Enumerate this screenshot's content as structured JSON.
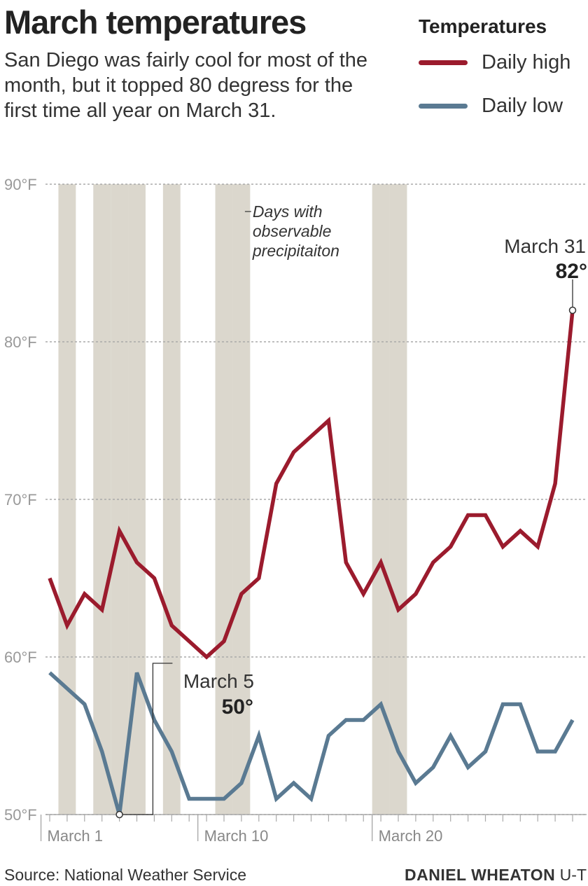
{
  "header": {
    "title": "March temperatures",
    "subtitle": "San Diego was fairly cool for most of the month, but it topped 80 degress for the first time all year on March 31."
  },
  "legend": {
    "title": "Temperatures",
    "items": [
      {
        "label": "Daily high",
        "color": "#9b1b2d"
      },
      {
        "label": "Daily low",
        "color": "#5a7a92"
      }
    ]
  },
  "footer": {
    "source": "Source: National Weather Service",
    "credit_name": "DANIEL WHEATON",
    "credit_org": "U-T"
  },
  "chart_data": {
    "type": "line",
    "x": [
      1,
      2,
      3,
      4,
      5,
      6,
      7,
      8,
      9,
      10,
      11,
      12,
      13,
      14,
      15,
      16,
      17,
      18,
      19,
      20,
      21,
      22,
      23,
      24,
      25,
      26,
      27,
      28,
      29,
      30,
      31
    ],
    "series": [
      {
        "name": "Daily high",
        "color": "#9b1b2d",
        "values": [
          65,
          62,
          64,
          63,
          68,
          66,
          65,
          62,
          61,
          60,
          61,
          64,
          65,
          71,
          73,
          74,
          75,
          66,
          64,
          66,
          63,
          64,
          66,
          67,
          69,
          69,
          67,
          68,
          67,
          71,
          82
        ]
      },
      {
        "name": "Daily low",
        "color": "#5a7a92",
        "values": [
          59,
          58,
          57,
          54,
          50,
          59,
          56,
          54,
          51,
          51,
          51,
          52,
          55,
          51,
          52,
          51,
          55,
          56,
          56,
          57,
          54,
          52,
          53,
          55,
          53,
          54,
          57,
          57,
          54,
          54,
          56
        ]
      }
    ],
    "precipitation_days": [
      2,
      4,
      5,
      6,
      8,
      11,
      12,
      20,
      21
    ],
    "precipitation_label": [
      "Days with",
      "observable",
      "precipitaiton"
    ],
    "precipitation_color": "#dbd7cd",
    "ylim": [
      50,
      90
    ],
    "yticks": [
      {
        "value": 50,
        "label": "50°F"
      },
      {
        "value": 60,
        "label": "60°F"
      },
      {
        "value": 70,
        "label": "70°F"
      },
      {
        "value": 80,
        "label": "80°F"
      },
      {
        "value": 90,
        "label": "90°F"
      }
    ],
    "xticks": [
      {
        "day": 1,
        "label": "March 1"
      },
      {
        "day": 10,
        "label": "March 10"
      },
      {
        "day": 20,
        "label": "March 20"
      }
    ],
    "annotations": [
      {
        "series": "Daily high",
        "day": 31,
        "value": 82,
        "label": "March 31",
        "value_label": "82°"
      },
      {
        "series": "Daily low",
        "day": 5,
        "value": 50,
        "label": "March 5",
        "value_label": "50°"
      }
    ],
    "grid": true,
    "legend_position": "top-right"
  }
}
